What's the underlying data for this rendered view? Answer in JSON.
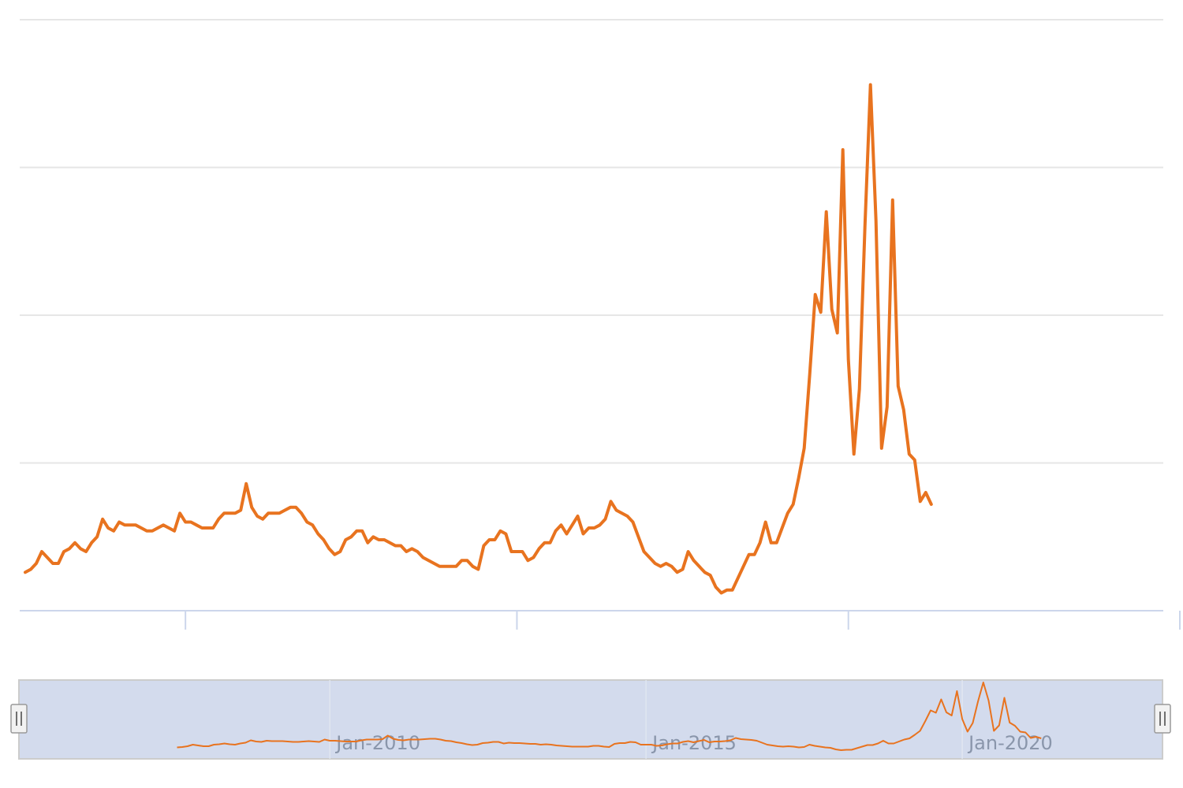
{
  "chart_data": {
    "type": "line",
    "title": "",
    "xlabel": "",
    "ylabel": "",
    "grid": true,
    "legend": "none",
    "x_range": [
      "2007-07",
      "2024-10"
    ],
    "y_range": [
      0,
      200
    ],
    "colors": {
      "series": "#e8731f",
      "navigator_bg": "#d3dbed",
      "axis": "#ccd6eb",
      "grid": "#e6e6e6"
    },
    "main_x_ticks": [
      "2010-01",
      "2015-01",
      "2020-01",
      "2025-01"
    ],
    "series": [
      {
        "values": [
          [
            "2007-08",
            13
          ],
          [
            "2007-09",
            14
          ],
          [
            "2007-10",
            16
          ],
          [
            "2007-11",
            20
          ],
          [
            "2007-12",
            18
          ],
          [
            "2008-01",
            16
          ],
          [
            "2008-02",
            16
          ],
          [
            "2008-03",
            20
          ],
          [
            "2008-04",
            21
          ],
          [
            "2008-05",
            23
          ],
          [
            "2008-06",
            21
          ],
          [
            "2008-07",
            20
          ],
          [
            "2008-08",
            23
          ],
          [
            "2008-09",
            25
          ],
          [
            "2008-10",
            31
          ],
          [
            "2008-11",
            28
          ],
          [
            "2008-12",
            27
          ],
          [
            "2009-01",
            30
          ],
          [
            "2009-02",
            29
          ],
          [
            "2009-03",
            29
          ],
          [
            "2009-04",
            29
          ],
          [
            "2009-05",
            28
          ],
          [
            "2009-06",
            27
          ],
          [
            "2009-07",
            27
          ],
          [
            "2009-08",
            28
          ],
          [
            "2009-09",
            29
          ],
          [
            "2009-10",
            28
          ],
          [
            "2009-11",
            27
          ],
          [
            "2009-12",
            33
          ],
          [
            "2010-01",
            30
          ],
          [
            "2010-02",
            30
          ],
          [
            "2010-03",
            29
          ],
          [
            "2010-04",
            28
          ],
          [
            "2010-05",
            28
          ],
          [
            "2010-06",
            28
          ],
          [
            "2010-07",
            31
          ],
          [
            "2010-08",
            33
          ],
          [
            "2010-09",
            33
          ],
          [
            "2010-10",
            33
          ],
          [
            "2010-11",
            34
          ],
          [
            "2010-12",
            43
          ],
          [
            "2011-01",
            35
          ],
          [
            "2011-02",
            32
          ],
          [
            "2011-03",
            31
          ],
          [
            "2011-04",
            33
          ],
          [
            "2011-05",
            33
          ],
          [
            "2011-06",
            33
          ],
          [
            "2011-07",
            34
          ],
          [
            "2011-08",
            35
          ],
          [
            "2011-09",
            35
          ],
          [
            "2011-10",
            33
          ],
          [
            "2011-11",
            30
          ],
          [
            "2011-12",
            29
          ],
          [
            "2012-01",
            26
          ],
          [
            "2012-02",
            24
          ],
          [
            "2012-03",
            21
          ],
          [
            "2012-04",
            19
          ],
          [
            "2012-05",
            20
          ],
          [
            "2012-06",
            24
          ],
          [
            "2012-07",
            25
          ],
          [
            "2012-08",
            27
          ],
          [
            "2012-09",
            27
          ],
          [
            "2012-10",
            23
          ],
          [
            "2012-11",
            25
          ],
          [
            "2012-12",
            24
          ],
          [
            "2013-01",
            24
          ],
          [
            "2013-02",
            23
          ],
          [
            "2013-03",
            22
          ],
          [
            "2013-04",
            22
          ],
          [
            "2013-05",
            20
          ],
          [
            "2013-06",
            21
          ],
          [
            "2013-07",
            20
          ],
          [
            "2013-08",
            18
          ],
          [
            "2013-09",
            17
          ],
          [
            "2013-10",
            16
          ],
          [
            "2013-11",
            15
          ],
          [
            "2013-12",
            15
          ],
          [
            "2014-01",
            15
          ],
          [
            "2014-02",
            15
          ],
          [
            "2014-03",
            17
          ],
          [
            "2014-04",
            17
          ],
          [
            "2014-05",
            15
          ],
          [
            "2014-06",
            14
          ],
          [
            "2014-07",
            22
          ],
          [
            "2014-08",
            24
          ],
          [
            "2014-09",
            24
          ],
          [
            "2014-10",
            27
          ],
          [
            "2014-11",
            26
          ],
          [
            "2014-12",
            20
          ],
          [
            "2015-01",
            20
          ],
          [
            "2015-02",
            20
          ],
          [
            "2015-03",
            17
          ],
          [
            "2015-04",
            18
          ],
          [
            "2015-05",
            21
          ],
          [
            "2015-06",
            23
          ],
          [
            "2015-07",
            23
          ],
          [
            "2015-08",
            27
          ],
          [
            "2015-09",
            29
          ],
          [
            "2015-10",
            26
          ],
          [
            "2015-11",
            29
          ],
          [
            "2015-12",
            32
          ],
          [
            "2016-01",
            26
          ],
          [
            "2016-02",
            28
          ],
          [
            "2016-03",
            28
          ],
          [
            "2016-04",
            29
          ],
          [
            "2016-05",
            31
          ],
          [
            "2016-06",
            37
          ],
          [
            "2016-07",
            34
          ],
          [
            "2016-08",
            33
          ],
          [
            "2016-09",
            32
          ],
          [
            "2016-10",
            30
          ],
          [
            "2016-11",
            25
          ],
          [
            "2016-12",
            20
          ],
          [
            "2017-01",
            18
          ],
          [
            "2017-02",
            16
          ],
          [
            "2017-03",
            15
          ],
          [
            "2017-04",
            16
          ],
          [
            "2017-05",
            15
          ],
          [
            "2017-06",
            13
          ],
          [
            "2017-07",
            14
          ],
          [
            "2017-08",
            20
          ],
          [
            "2017-09",
            17
          ],
          [
            "2017-10",
            15
          ],
          [
            "2017-11",
            13
          ],
          [
            "2017-12",
            12
          ],
          [
            "2018-01",
            8
          ],
          [
            "2018-02",
            6
          ],
          [
            "2018-03",
            7
          ],
          [
            "2018-04",
            7
          ],
          [
            "2018-05",
            11
          ],
          [
            "2018-06",
            15
          ],
          [
            "2018-07",
            19
          ],
          [
            "2018-08",
            19
          ],
          [
            "2018-09",
            23
          ],
          [
            "2018-10",
            30
          ],
          [
            "2018-11",
            23
          ],
          [
            "2018-12",
            23
          ],
          [
            "2019-01",
            28
          ],
          [
            "2019-02",
            33
          ],
          [
            "2019-03",
            36
          ],
          [
            "2019-04",
            45
          ],
          [
            "2019-05",
            55
          ],
          [
            "2019-06",
            80
          ],
          [
            "2019-07",
            107
          ],
          [
            "2019-08",
            101
          ],
          [
            "2019-09",
            135
          ],
          [
            "2019-10",
            102
          ],
          [
            "2019-11",
            94
          ],
          [
            "2019-12",
            156
          ],
          [
            "2020-01",
            85
          ],
          [
            "2020-02",
            53
          ],
          [
            "2020-03",
            75
          ],
          [
            "2020-04",
            130
          ],
          [
            "2020-05",
            178
          ],
          [
            "2020-06",
            132
          ],
          [
            "2020-07",
            55
          ],
          [
            "2020-08",
            69
          ],
          [
            "2020-09",
            139
          ],
          [
            "2020-10",
            76
          ],
          [
            "2020-11",
            68
          ],
          [
            "2020-12",
            53
          ],
          [
            "2021-01",
            51
          ],
          [
            "2021-02",
            37
          ],
          [
            "2021-03",
            40
          ],
          [
            "2021-04",
            36
          ]
        ]
      }
    ]
  },
  "navigator": {
    "labels": [
      {
        "text": "Jan-2010",
        "date": "2010-01"
      },
      {
        "text": "Jan-2015",
        "date": "2015-01"
      },
      {
        "text": "Jan-2020",
        "date": "2020-01"
      }
    ]
  }
}
